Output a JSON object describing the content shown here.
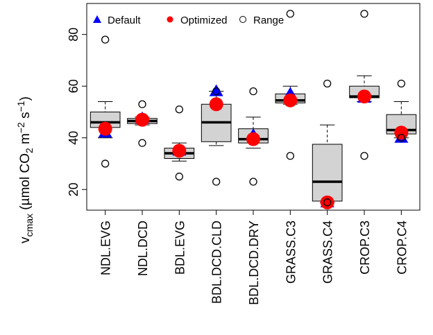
{
  "chart_data": {
    "type": "box",
    "ylabel": [
      "v",
      "cmax",
      " (µmol CO",
      "2",
      " m",
      "−2",
      " s",
      "−1",
      ")"
    ],
    "categories": [
      "NDL.EVG",
      "NDL.DCD",
      "BDL.EVG",
      "BDL.DCD.CLD",
      "BDL.DCD.DRY",
      "GRASS.C3",
      "GRASS.C4",
      "CROP.C3",
      "CROP.C4"
    ],
    "box_color": "#d3d3d3",
    "boxes": {
      "min": [
        40,
        45,
        31,
        37,
        36,
        53,
        15,
        54,
        40
      ],
      "q1": [
        44,
        45.5,
        32,
        38.5,
        38,
        53.5,
        15.5,
        55.5,
        41.5
      ],
      "median": [
        46,
        46.5,
        34,
        46,
        39.5,
        54.5,
        23,
        56,
        43
      ],
      "q3": [
        50,
        47.5,
        36,
        53,
        43.5,
        57,
        37.5,
        60,
        49
      ],
      "max": [
        54,
        48,
        38,
        58,
        48,
        60,
        45,
        64,
        54
      ]
    },
    "series": [
      {
        "name": "Default",
        "color": "#0000ff",
        "marker": "triangle",
        "values": [
          42,
          47.5,
          35,
          58,
          41,
          57,
          15,
          55.5,
          40
        ]
      },
      {
        "name": "Optimized",
        "color": "#ff0000",
        "marker": "dot",
        "values": [
          43.5,
          47,
          35,
          53,
          39.5,
          54.5,
          15,
          56,
          42
        ]
      },
      {
        "name": "Range",
        "color": "#000000",
        "marker": "circle",
        "values": [
          [
            78,
            30
          ],
          [
            53,
            38
          ],
          [
            51,
            25
          ],
          [
            58,
            23
          ],
          [
            58,
            23
          ],
          [
            88,
            33
          ],
          [
            61,
            15
          ],
          [
            88,
            33
          ],
          [
            61,
            40
          ]
        ]
      }
    ],
    "ylim": [
      12,
      92
    ],
    "yticks": [
      20,
      40,
      60,
      80
    ]
  }
}
